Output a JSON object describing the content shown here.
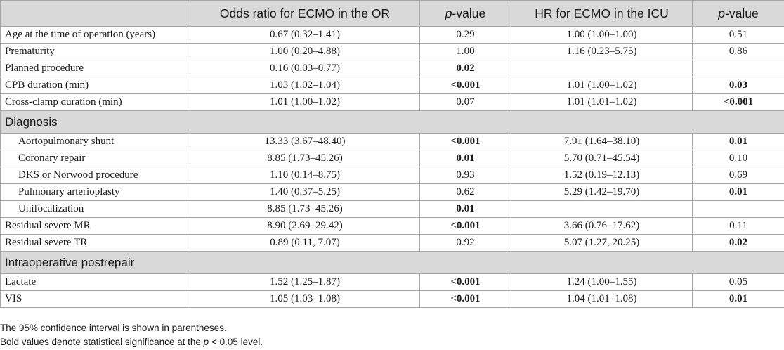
{
  "table": {
    "headers": [
      {
        "text": "",
        "italic": ""
      },
      {
        "text": "Odds ratio for ECMO in the OR",
        "italic": ""
      },
      {
        "text": "-value",
        "italic": "p"
      },
      {
        "text": "HR for ECMO in the ICU",
        "italic": ""
      },
      {
        "text": "-value",
        "italic": "p"
      }
    ],
    "rows": [
      {
        "type": "data",
        "label": "Age at the time of operation (years)",
        "indent": false,
        "or": "0.67 (0.32–1.41)",
        "p1": "0.29",
        "p1_bold": false,
        "hr": "1.00 (1.00–1.00)",
        "p2": "0.51",
        "p2_bold": false
      },
      {
        "type": "data",
        "label": "Prematurity",
        "indent": false,
        "or": "1.00 (0.20–4.88)",
        "p1": "1.00",
        "p1_bold": false,
        "hr": "1.16 (0.23–5.75)",
        "p2": "0.86",
        "p2_bold": false
      },
      {
        "type": "data",
        "label": "Planned procedure",
        "indent": false,
        "or": "0.16 (0.03–0.77)",
        "p1": "0.02",
        "p1_bold": true,
        "hr": "",
        "p2": "",
        "p2_bold": false
      },
      {
        "type": "data",
        "label": "CPB duration (min)",
        "indent": false,
        "or": "1.03 (1.02–1.04)",
        "p1": "<0.001",
        "p1_bold": true,
        "hr": "1.01 (1.00–1.02)",
        "p2": "0.03",
        "p2_bold": true
      },
      {
        "type": "data",
        "label": "Cross-clamp duration (min)",
        "indent": false,
        "or": "1.01 (1.00–1.02)",
        "p1": "0.07",
        "p1_bold": false,
        "hr": "1.01 (1.01–1.02)",
        "p2": "<0.001",
        "p2_bold": true
      },
      {
        "type": "section",
        "label": "Diagnosis"
      },
      {
        "type": "data",
        "label": "Aortopulmonary shunt",
        "indent": true,
        "or": "13.33 (3.67–48.40)",
        "p1": "<0.001",
        "p1_bold": true,
        "hr": "7.91 (1.64–38.10)",
        "p2": "0.01",
        "p2_bold": true
      },
      {
        "type": "data",
        "label": "Coronary repair",
        "indent": true,
        "or": "8.85 (1.73–45.26)",
        "p1": "0.01",
        "p1_bold": true,
        "hr": "5.70 (0.71–45.54)",
        "p2": "0.10",
        "p2_bold": false
      },
      {
        "type": "data",
        "label": "DKS or Norwood procedure",
        "indent": true,
        "or": "1.10 (0.14–8.75)",
        "p1": "0.93",
        "p1_bold": false,
        "hr": "1.52 (0.19–12.13)",
        "p2": "0.69",
        "p2_bold": false
      },
      {
        "type": "data",
        "label": "Pulmonary arterioplasty",
        "indent": true,
        "or": "1.40 (0.37–5.25)",
        "p1": "0.62",
        "p1_bold": false,
        "hr": "5.29 (1.42–19.70)",
        "p2": "0.01",
        "p2_bold": true
      },
      {
        "type": "data",
        "label": "Unifocalization",
        "indent": true,
        "or": "8.85 (1.73–45.26)",
        "p1": "0.01",
        "p1_bold": true,
        "hr": "",
        "p2": "",
        "p2_bold": false
      },
      {
        "type": "data",
        "label": "Residual severe MR",
        "indent": false,
        "or": "8.90 (2.69–29.42)",
        "p1": "<0.001",
        "p1_bold": true,
        "hr": "3.66 (0.76–17.62)",
        "p2": "0.11",
        "p2_bold": false
      },
      {
        "type": "data",
        "label": "Residual severe TR",
        "indent": false,
        "or": "0.89 (0.11, 7.07)",
        "p1": "0.92",
        "p1_bold": false,
        "hr": "5.07 (1.27, 20.25)",
        "p2": "0.02",
        "p2_bold": true
      },
      {
        "type": "section",
        "label": "Intraoperative postrepair"
      },
      {
        "type": "data",
        "label": "Lactate",
        "indent": false,
        "or": "1.52 (1.25–1.87)",
        "p1": "<0.001",
        "p1_bold": true,
        "hr": "1.24 (1.00–1.55)",
        "p2": "0.05",
        "p2_bold": false
      },
      {
        "type": "data",
        "label": "VIS",
        "indent": false,
        "or": "1.05 (1.03–1.08)",
        "p1": "<0.001",
        "p1_bold": true,
        "hr": "1.04 (1.01–1.08)",
        "p2": "0.01",
        "p2_bold": true
      }
    ]
  },
  "footnotes": {
    "line1": "The 95% confidence interval is shown in parentheses.",
    "line2_prefix": "Bold values denote statistical significance at the ",
    "line2_italic": "p",
    "line2_suffix": " < 0.05 level."
  },
  "colors": {
    "header_bg": "#d9d9d9",
    "border": "#a6a6a6",
    "text": "#1a1a1a"
  }
}
